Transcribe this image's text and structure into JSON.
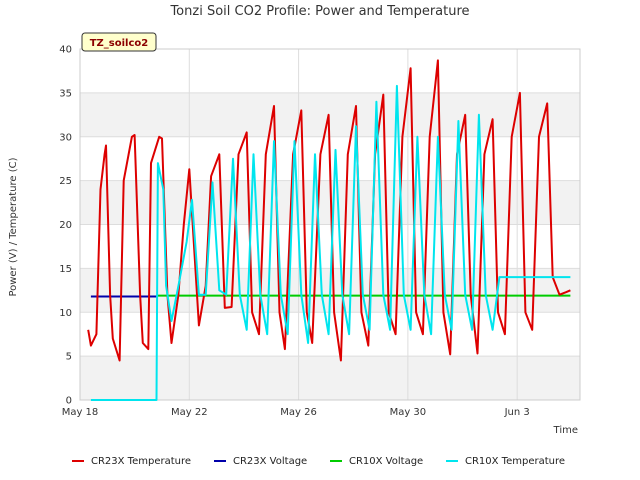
{
  "chart_data": {
    "type": "line",
    "title": "Tonzi Soil CO2 Profile: Power and Temperature",
    "xlabel": "Time",
    "ylabel": "Power (V) / Temperature (C)",
    "badge": "TZ_soilco2",
    "xlim": [
      0,
      18.3
    ],
    "ylim": [
      0,
      40
    ],
    "yticks": [
      0,
      5,
      10,
      15,
      20,
      25,
      30,
      35,
      40
    ],
    "xticks": [
      {
        "day": 0,
        "label": "May 18"
      },
      {
        "day": 4,
        "label": "May 22"
      },
      {
        "day": 8,
        "label": "May 26"
      },
      {
        "day": 12,
        "label": "May 30"
      },
      {
        "day": 16,
        "label": "Jun 3"
      }
    ],
    "grid": true,
    "legend_position": "bottom",
    "series": [
      {
        "name": "CR23X Temperature",
        "color": "#dd0000",
        "x": [
          0.3,
          0.4,
          0.6,
          0.75,
          0.9,
          0.95,
          1.1,
          1.2,
          1.45,
          1.6,
          1.9,
          2.0,
          2.2,
          2.3,
          2.5,
          2.6,
          2.9,
          3.0,
          3.2,
          3.35,
          3.6,
          3.8,
          4.0,
          4.35,
          4.6,
          4.8,
          5.1,
          5.3,
          5.55,
          5.8,
          6.1,
          6.3,
          6.55,
          6.8,
          7.1,
          7.3,
          7.5,
          7.8,
          8.1,
          8.3,
          8.5,
          8.8,
          9.1,
          9.3,
          9.55,
          9.8,
          10.1,
          10.3,
          10.55,
          10.8,
          11.1,
          11.3,
          11.55,
          11.8,
          12.1,
          12.3,
          12.55,
          12.8,
          13.1,
          13.3,
          13.55,
          13.8,
          14.1,
          14.3,
          14.55,
          14.8,
          15.1,
          15.3,
          15.55,
          15.8,
          16.1,
          16.3,
          16.55,
          16.8,
          17.1,
          17.3,
          17.55,
          17.8,
          17.95
        ],
        "y": [
          8,
          6.2,
          7.5,
          24,
          28,
          29,
          12,
          7,
          4.5,
          25,
          30,
          30.2,
          12,
          6.5,
          5.8,
          27,
          30,
          29.8,
          12,
          6.5,
          12,
          20,
          26.3,
          8.5,
          13,
          25.5,
          28,
          10.5,
          10.6,
          28,
          30.5,
          10,
          7.5,
          28,
          33.5,
          10,
          5.8,
          28,
          33,
          10,
          6.5,
          28,
          32.5,
          10,
          4.5,
          28,
          33.5,
          10,
          6.2,
          28,
          34.8,
          10,
          7.5,
          30,
          37.8,
          10,
          7.5,
          30,
          38.7,
          10,
          5.2,
          28,
          32.5,
          12,
          5.3,
          28,
          32,
          10,
          7.5,
          30,
          35,
          10,
          8,
          30,
          33.8,
          14,
          12,
          12.3,
          12.5
        ]
      },
      {
        "name": "CR23X Voltage",
        "color": "#0000aa",
        "x": [
          0.4,
          2.8
        ],
        "y": [
          11.8,
          11.8
        ]
      },
      {
        "name": "CR10X Voltage",
        "color": "#00cc00",
        "x": [
          2.8,
          17.95
        ],
        "y": [
          11.9,
          11.9
        ]
      },
      {
        "name": "CR10X Temperature",
        "color": "#00e5ee",
        "x": [
          0.4,
          2.8,
          2.82,
          2.85,
          3.05,
          3.15,
          3.35,
          3.6,
          3.9,
          4.1,
          4.35,
          4.6,
          4.85,
          5.1,
          5.35,
          5.6,
          5.85,
          6.1,
          6.35,
          6.6,
          6.85,
          7.1,
          7.35,
          7.6,
          7.85,
          8.1,
          8.35,
          8.6,
          8.85,
          9.1,
          9.35,
          9.6,
          9.85,
          10.1,
          10.35,
          10.6,
          10.85,
          11.1,
          11.35,
          11.6,
          11.85,
          12.1,
          12.35,
          12.6,
          12.85,
          13.1,
          13.35,
          13.6,
          13.85,
          14.1,
          14.35,
          14.6,
          14.85,
          15.1,
          15.35,
          15.6,
          15.85,
          16.1,
          16.35,
          16.6,
          16.85,
          17.1,
          17.35,
          17.6,
          17.85,
          17.95
        ],
        "y": [
          0,
          0,
          10,
          27,
          24,
          13,
          9,
          13,
          18,
          22.8,
          12,
          12,
          24.8,
          12.5,
          12,
          27.5,
          12,
          8,
          28,
          12,
          7.5,
          29.5,
          12,
          7.5,
          29.5,
          12,
          6.5,
          28,
          12,
          7.5,
          28.5,
          12,
          7.5,
          31.2,
          12,
          8,
          34,
          12,
          8,
          35.8,
          12,
          8,
          30,
          12,
          7.5,
          30,
          12,
          8,
          31.8,
          12,
          8,
          32.5,
          12,
          8,
          14,
          14,
          14,
          14,
          14,
          14,
          14,
          14,
          14,
          14,
          14,
          14
        ]
      }
    ]
  }
}
